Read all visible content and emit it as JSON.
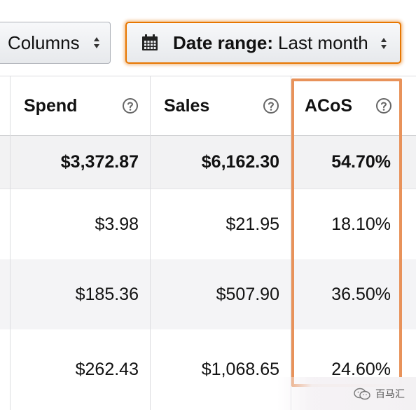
{
  "toolbar": {
    "columns_label": "Columns",
    "date_label": "Date range:",
    "date_value": "Last month",
    "accent_color": "#e77600"
  },
  "table": {
    "headers": [
      "Spend",
      "Sales",
      "ACoS"
    ],
    "totals": [
      "$3,372.87",
      "$6,162.30",
      "54.70%"
    ],
    "rows": [
      [
        "$3.98",
        "$21.95",
        "18.10%"
      ],
      [
        "$185.36",
        "$507.90",
        "36.50%"
      ],
      [
        "$262.43",
        "$1,068.65",
        "24.60%"
      ]
    ],
    "highlight_color": "#e8925a"
  },
  "icons": {
    "help": "question-circle-icon",
    "calendar": "calendar-icon",
    "sort": "sort-arrows-icon"
  },
  "watermark": {
    "text": "百马汇"
  }
}
